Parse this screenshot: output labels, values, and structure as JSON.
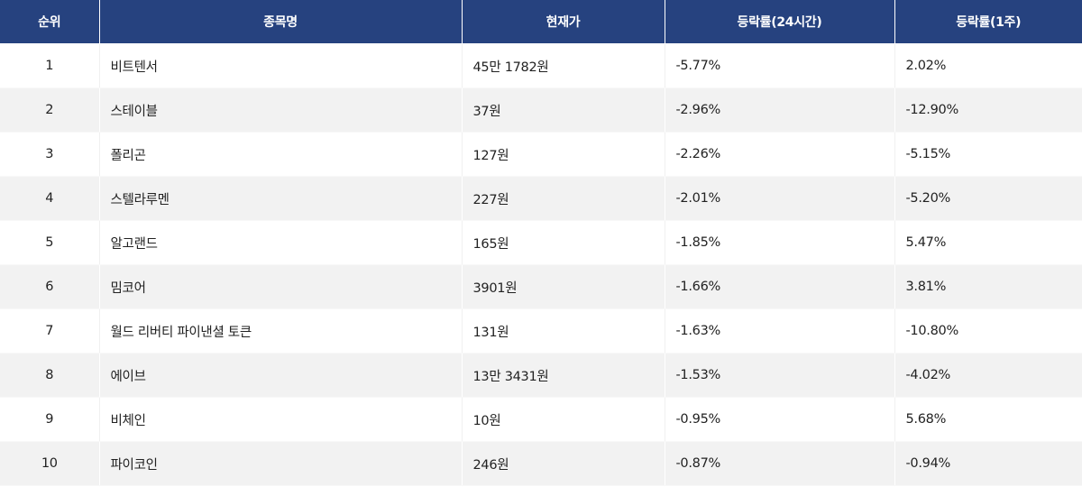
{
  "table": {
    "header_bg": "#26427f",
    "alt_row_bg": "#f2f2f2",
    "columns": [
      "순위",
      "종목명",
      "현재가",
      "등락률(24시간)",
      "등락률(1주)"
    ],
    "rows": [
      {
        "rank": "1",
        "name": "비트텐서",
        "price": "45만 1782원",
        "change_24h": "-5.77%",
        "change_1w": "2.02%"
      },
      {
        "rank": "2",
        "name": "스테이블",
        "price": "37원",
        "change_24h": "-2.96%",
        "change_1w": "-12.90%"
      },
      {
        "rank": "3",
        "name": "폴리곤",
        "price": "127원",
        "change_24h": "-2.26%",
        "change_1w": "-5.15%"
      },
      {
        "rank": "4",
        "name": "스텔라루멘",
        "price": "227원",
        "change_24h": "-2.01%",
        "change_1w": "-5.20%"
      },
      {
        "rank": "5",
        "name": "알고랜드",
        "price": "165원",
        "change_24h": "-1.85%",
        "change_1w": "5.47%"
      },
      {
        "rank": "6",
        "name": "밈코어",
        "price": "3901원",
        "change_24h": "-1.66%",
        "change_1w": "3.81%"
      },
      {
        "rank": "7",
        "name": "월드 리버티 파이낸셜 토큰",
        "price": "131원",
        "change_24h": "-1.63%",
        "change_1w": "-10.80%"
      },
      {
        "rank": "8",
        "name": "에이브",
        "price": "13만 3431원",
        "change_24h": "-1.53%",
        "change_1w": "-4.02%"
      },
      {
        "rank": "9",
        "name": "비체인",
        "price": "10원",
        "change_24h": "-0.95%",
        "change_1w": "5.68%"
      },
      {
        "rank": "10",
        "name": "파이코인",
        "price": "246원",
        "change_24h": "-0.87%",
        "change_1w": "-0.94%"
      }
    ]
  }
}
